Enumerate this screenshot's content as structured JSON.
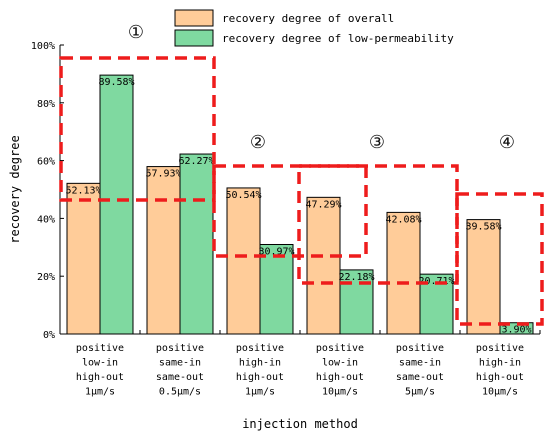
{
  "chart_data": {
    "type": "bar",
    "xlabel": "injection method",
    "ylabel": "recovery degree",
    "ylim": [
      0,
      100
    ],
    "yticks": [
      "0%",
      "20%",
      "40%",
      "60%",
      "80%",
      "100%"
    ],
    "categories": [
      [
        "positive",
        "low-in",
        "high-out",
        "1μm/s"
      ],
      [
        "positive",
        "same-in",
        "same-out",
        "0.5μm/s"
      ],
      [
        "positive",
        "high-in",
        "high-out",
        "1μm/s"
      ],
      [
        "positive",
        "low-in",
        "high-out",
        "10μm/s"
      ],
      [
        "positive",
        "same-in",
        "same-out",
        "5μm/s"
      ],
      [
        "positive",
        "high-in",
        "high-out",
        "10μm/s"
      ]
    ],
    "series": [
      {
        "name": "recovery degree of overall",
        "color": "#FFCC99",
        "values": [
          52.13,
          57.93,
          50.54,
          47.29,
          42.08,
          39.58
        ],
        "labels": [
          "52.13%",
          "57.93%",
          "50.54%",
          "47.29%",
          "42.08%",
          "39.58%"
        ]
      },
      {
        "name": "recovery degree of low-permeability",
        "color": "#7FD9A0",
        "values": [
          89.58,
          62.27,
          30.97,
          22.18,
          20.71,
          3.9
        ],
        "labels": [
          "89.58%",
          "62.27%",
          "30.97%",
          "22.18%",
          "20.71%",
          "3.90%"
        ]
      }
    ],
    "annotations": [
      "①",
      "②",
      "③",
      "④"
    ],
    "legend_position": "top-right",
    "grid": false
  }
}
